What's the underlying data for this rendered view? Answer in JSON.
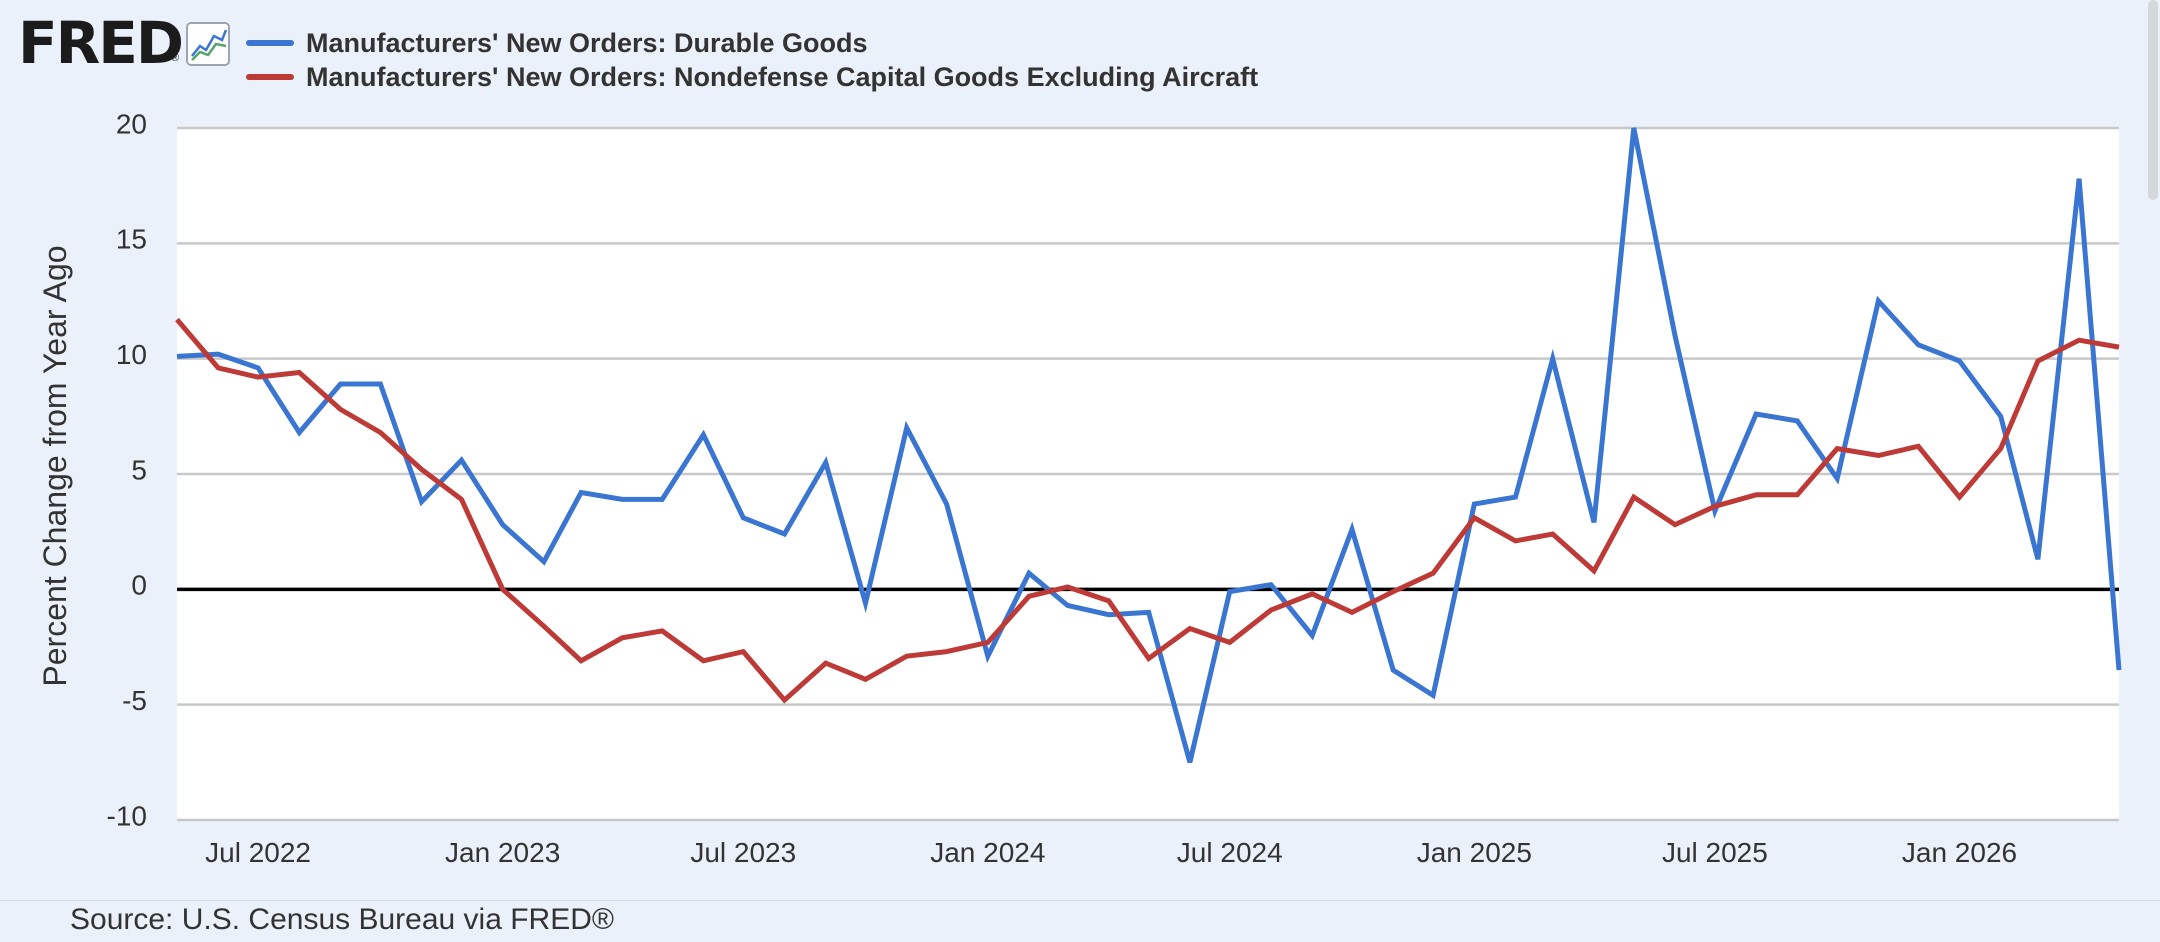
{
  "header": {
    "logo_text": "FRED",
    "logo_mark": "®",
    "graph_icon": "line-chart-icon"
  },
  "footer": {
    "source": "Source: U.S. Census Bureau via FRED®"
  },
  "colors": {
    "durable": "#3a76d1",
    "capital": "#bd3a37",
    "zero_line": "#000000",
    "grid": "#c8c8c8",
    "plot_bg": "#ffffff",
    "page_bg": "#eaf1fa"
  },
  "chart_data": {
    "type": "line",
    "title": "",
    "xlabel": "",
    "ylabel": "Percent Change from Year Ago",
    "ylim": [
      -10,
      20
    ],
    "yticks": [
      -10,
      -5,
      0,
      5,
      10,
      15,
      20
    ],
    "xlim": [
      "2022-05-01",
      "2026-05-01"
    ],
    "xticks": [
      {
        "date": "2022-07-01",
        "label": "Jul 2022"
      },
      {
        "date": "2023-01-01",
        "label": "Jan 2023"
      },
      {
        "date": "2023-07-01",
        "label": "Jul 2023"
      },
      {
        "date": "2024-01-01",
        "label": "Jan 2024"
      },
      {
        "date": "2024-07-01",
        "label": "Jul 2024"
      },
      {
        "date": "2025-01-01",
        "label": "Jan 2025"
      },
      {
        "date": "2025-07-01",
        "label": "Jul 2025"
      },
      {
        "date": "2026-01-01",
        "label": "Jan 2026"
      }
    ],
    "grid": true,
    "legend_position": "top-left",
    "x": [
      "2022-05-01",
      "2022-06-01",
      "2022-07-01",
      "2022-08-01",
      "2022-09-01",
      "2022-10-01",
      "2022-11-01",
      "2022-12-01",
      "2023-01-01",
      "2023-02-01",
      "2023-03-01",
      "2023-04-01",
      "2023-05-01",
      "2023-06-01",
      "2023-07-01",
      "2023-08-01",
      "2023-09-01",
      "2023-10-01",
      "2023-11-01",
      "2023-12-01",
      "2024-01-01",
      "2024-02-01",
      "2024-03-01",
      "2024-04-01",
      "2024-05-01",
      "2024-06-01",
      "2024-07-01",
      "2024-08-01",
      "2024-09-01",
      "2024-10-01",
      "2024-11-01",
      "2024-12-01",
      "2025-01-01",
      "2025-02-01",
      "2025-03-01",
      "2025-04-01",
      "2025-05-01",
      "2025-06-01",
      "2025-07-01",
      "2025-08-01",
      "2025-09-01",
      "2025-10-01",
      "2025-11-01",
      "2025-12-01",
      "2026-01-01",
      "2026-02-01",
      "2026-03-01",
      "2026-04-01",
      "2026-05-01"
    ],
    "series": [
      {
        "name": "Manufacturers' New Orders: Durable Goods",
        "values": [
          10.1,
          10.2,
          9.6,
          6.8,
          8.9,
          8.9,
          3.8,
          5.6,
          2.8,
          1.2,
          4.2,
          3.9,
          3.9,
          6.7,
          3.1,
          2.4,
          5.5,
          -0.6,
          7.0,
          3.7,
          -2.9,
          0.7,
          -0.7,
          -1.1,
          -1.0,
          -7.5,
          -0.1,
          0.2,
          -2.0,
          2.6,
          -3.5,
          -4.6,
          3.7,
          4.0,
          10.0,
          2.9,
          20.0,
          11.0,
          3.4,
          7.6,
          7.3,
          4.8,
          12.5,
          10.6,
          9.9,
          7.5,
          1.3,
          17.8,
          -3.5
        ]
      },
      {
        "name": "Manufacturers' New Orders: Nondefense Capital Goods Excluding Aircraft",
        "values": [
          11.7,
          9.6,
          9.2,
          9.4,
          7.8,
          6.8,
          5.2,
          3.9,
          0.0,
          -1.6,
          -3.1,
          -2.1,
          -1.8,
          -3.1,
          -2.7,
          -4.8,
          -3.2,
          -3.9,
          -2.9,
          -2.7,
          -2.3,
          -0.3,
          0.1,
          -0.5,
          -3.0,
          -1.7,
          -2.3,
          -0.9,
          -0.2,
          -1.0,
          -0.1,
          0.7,
          3.1,
          2.1,
          2.4,
          0.8,
          4.0,
          2.8,
          3.6,
          4.1,
          4.1,
          6.1,
          5.8,
          6.2,
          4.0,
          6.1,
          9.9,
          10.8,
          10.5
        ]
      }
    ]
  }
}
